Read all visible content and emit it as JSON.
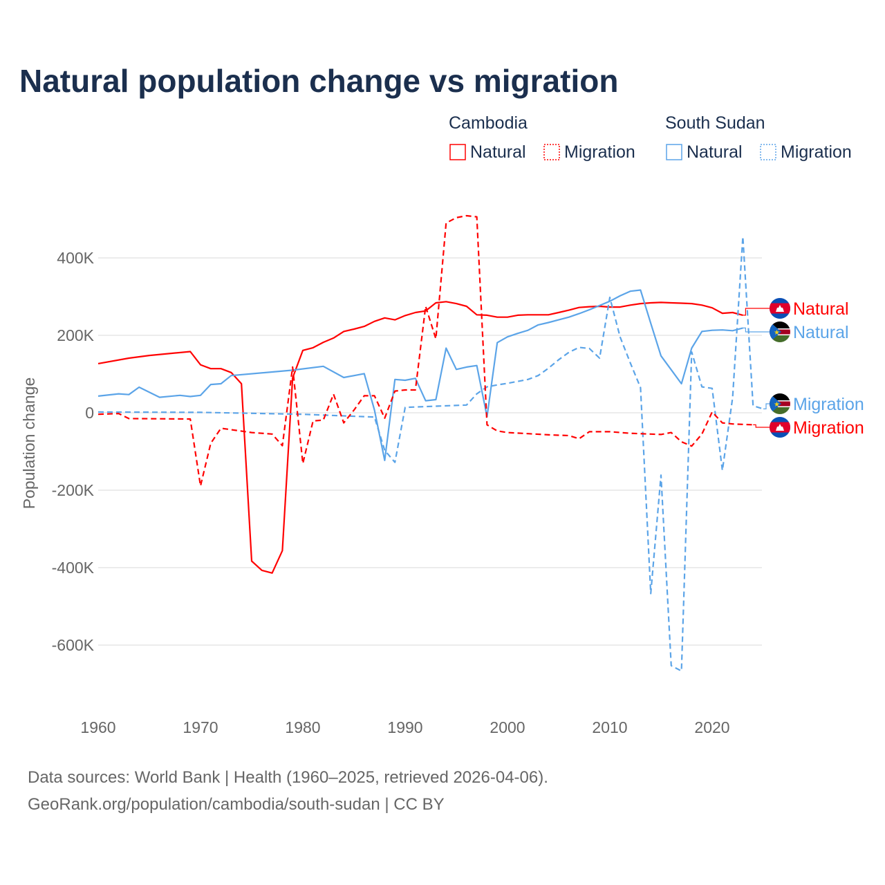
{
  "title": "Natural population change vs migration",
  "legend": {
    "groups": [
      {
        "name": "Cambodia",
        "items": [
          "Natural",
          "Migration"
        ]
      },
      {
        "name": "South Sudan",
        "items": [
          "Natural",
          "Migration"
        ]
      }
    ]
  },
  "footer": {
    "line1": "Data sources: World Bank | Health (1960–2025, retrieved 2026-04-06).",
    "line2": "GeoRank.org/population/cambodia/south-sudan | CC BY"
  },
  "colors": {
    "cambodia": "#ff0000",
    "south_sudan": "#5ba4e8",
    "title": "#1b2f4e"
  },
  "chart_data": {
    "type": "line",
    "title": "Natural population change vs migration",
    "xlabel": "",
    "ylabel": "Population change",
    "xlim": [
      1960,
      2025
    ],
    "ylim": [
      -700000,
      520000
    ],
    "x_ticks": [
      1960,
      1970,
      1980,
      1990,
      2000,
      2010,
      2020
    ],
    "x_tick_labels": [
      "1960",
      "1970",
      "1980",
      "1990",
      "2000",
      "2010",
      "2020"
    ],
    "y_ticks": [
      400000,
      200000,
      0,
      -200000,
      -400000,
      -600000
    ],
    "y_tick_labels": [
      "400K",
      "200K",
      "0",
      "-200K",
      "-400K",
      "-600K"
    ],
    "grid": true,
    "legend_position": "top-right",
    "series": [
      {
        "name": "Cambodia Natural",
        "country": "Cambodia",
        "kind": "Natural",
        "end_label": "Natural",
        "flag": "cambodia-flag",
        "color": "#ff0000",
        "dashed": false,
        "x": [
          1960,
          1963,
          1965,
          1969,
          1970,
          1971,
          1972,
          1973,
          1974,
          1975,
          1976,
          1977,
          1978,
          1979,
          1980,
          1981,
          1982,
          1983,
          1984,
          1985,
          1986,
          1987,
          1988,
          1989,
          1990,
          1991,
          1992,
          1993,
          1994,
          1995,
          1996,
          1997,
          1998,
          1999,
          2000,
          2001,
          2002,
          2003,
          2004,
          2005,
          2006,
          2007,
          2008,
          2009,
          2010,
          2011,
          2012,
          2013,
          2014,
          2015,
          2016,
          2017,
          2018,
          2019,
          2020,
          2021,
          2022,
          2023
        ],
        "values": [
          127000,
          141000,
          148000,
          158000,
          124000,
          114000,
          114000,
          104000,
          75000,
          -383000,
          -407000,
          -414000,
          -356000,
          90000,
          161000,
          168000,
          182000,
          193000,
          210000,
          216000,
          223000,
          236000,
          245000,
          240000,
          251000,
          259000,
          263000,
          284000,
          287000,
          282000,
          275000,
          253000,
          252000,
          247000,
          247000,
          252000,
          253000,
          253000,
          253000,
          259000,
          265000,
          272000,
          274000,
          275000,
          273000,
          273000,
          278000,
          282000,
          284000,
          285000,
          284000,
          283000,
          282000,
          278000,
          271000,
          257000,
          259000,
          252000
        ]
      },
      {
        "name": "South Sudan Natural",
        "country": "South Sudan",
        "kind": "Natural",
        "end_label": "Natural",
        "flag": "south-sudan-flag",
        "color": "#5ba4e8",
        "dashed": false,
        "x": [
          1960,
          1962,
          1963,
          1964,
          1966,
          1968,
          1969,
          1970,
          1971,
          1972,
          1973,
          1979,
          1982,
          1984,
          1986,
          1987,
          1988,
          1989,
          1990,
          1991,
          1992,
          1993,
          1994,
          1995,
          1996,
          1997,
          1998,
          1999,
          2000,
          2001,
          2002,
          2003,
          2004,
          2005,
          2006,
          2007,
          2008,
          2009,
          2010,
          2011,
          2012,
          2013,
          2014,
          2015,
          2016,
          2017,
          2018,
          2019,
          2020,
          2021,
          2022,
          2023
        ],
        "values": [
          43000,
          49000,
          47000,
          66000,
          40000,
          45000,
          42000,
          45000,
          73000,
          75000,
          96000,
          110000,
          120000,
          91000,
          101000,
          7000,
          -123000,
          86000,
          84000,
          89000,
          31000,
          34000,
          167000,
          112000,
          118000,
          122000,
          -10000,
          181000,
          196000,
          205000,
          213000,
          227000,
          233000,
          240000,
          247000,
          256000,
          266000,
          277000,
          288000,
          302000,
          314000,
          317000,
          231000,
          147000,
          111000,
          75000,
          167000,
          210000,
          213000,
          214000,
          212000,
          219000
        ]
      },
      {
        "name": "South Sudan Migration",
        "country": "South Sudan",
        "kind": "Migration",
        "end_label": "Migration",
        "flag": "south-sudan-flag",
        "color": "#5ba4e8",
        "dashed": true,
        "x": [
          1960,
          1970,
          1980,
          1987,
          1988,
          1989,
          1990,
          1996,
          1997,
          1998,
          1999,
          2000,
          2001,
          2002,
          2003,
          2004,
          2005,
          2006,
          2007,
          2008,
          2009,
          2010,
          2011,
          2012,
          2013,
          2014,
          2015,
          2016,
          2017,
          2018,
          2019,
          2020,
          2021,
          2022,
          2023,
          2024,
          2025
        ],
        "values": [
          2000,
          1000,
          -4000,
          -11000,
          -97000,
          -128000,
          14000,
          20000,
          49000,
          67000,
          72000,
          76000,
          81000,
          86000,
          96000,
          115000,
          137000,
          156000,
          169000,
          166000,
          141000,
          298000,
          196000,
          129000,
          65000,
          -467000,
          -161000,
          -653000,
          -667000,
          157000,
          67000,
          63000,
          -149000,
          39000,
          455000,
          18000,
          10000
        ]
      },
      {
        "name": "Cambodia Migration",
        "country": "Cambodia",
        "kind": "Migration",
        "end_label": "Migration",
        "flag": "cambodia-flag",
        "color": "#ff0000",
        "dashed": true,
        "x": [
          1960,
          1962,
          1963,
          1969,
          1970,
          1971,
          1972,
          1975,
          1977,
          1978,
          1979,
          1980,
          1981,
          1982,
          1983,
          1984,
          1985,
          1986,
          1987,
          1988,
          1989,
          1990,
          1991,
          1992,
          1993,
          1994,
          1995,
          1996,
          1997,
          1998,
          1999,
          2000,
          2002,
          2004,
          2006,
          2007,
          2008,
          2010,
          2012,
          2014,
          2015,
          2016,
          2017,
          2018,
          2019,
          2020,
          2021,
          2022,
          2023,
          2024
        ],
        "values": [
          -4000,
          -2000,
          -15000,
          -16000,
          -189000,
          -79000,
          -40000,
          -51000,
          -55000,
          -85000,
          118000,
          -131000,
          -21000,
          -19000,
          48000,
          -26000,
          7000,
          44000,
          44000,
          -14000,
          56000,
          59000,
          59000,
          275000,
          191000,
          490000,
          504000,
          509000,
          506000,
          -31000,
          -47000,
          -51000,
          -54000,
          -57000,
          -59000,
          -67000,
          -49000,
          -49000,
          -53000,
          -55000,
          -56000,
          -51000,
          -75000,
          -86000,
          -55000,
          2000,
          -26000,
          -29000,
          -30000,
          -31000
        ]
      }
    ]
  }
}
